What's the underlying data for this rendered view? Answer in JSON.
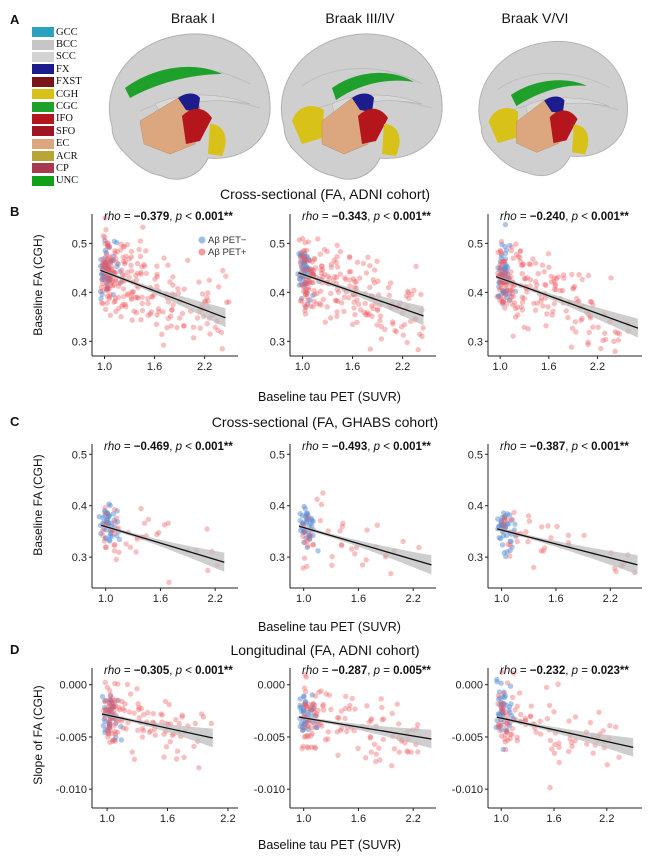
{
  "panel_letters": [
    "A",
    "B",
    "C",
    "D"
  ],
  "panel_a": {
    "titles": [
      "Braak I",
      "Braak III/IV",
      "Braak V/VI"
    ],
    "legend": [
      {
        "label": "GCC",
        "color": "#2ba3c0"
      },
      {
        "label": "BCC",
        "color": "#c6c6c6"
      },
      {
        "label": "SCC",
        "color": "#d3d3d3"
      },
      {
        "label": "FX",
        "color": "#1c1c8c"
      },
      {
        "label": "FXST",
        "color": "#7a1418"
      },
      {
        "label": "CGH",
        "color": "#d8c21a"
      },
      {
        "label": "CGC",
        "color": "#1fa02a"
      },
      {
        "label": "IFO",
        "color": "#b4161c"
      },
      {
        "label": "SFO",
        "color": "#a01424"
      },
      {
        "label": "EC",
        "color": "#dca77e"
      },
      {
        "label": "ACR",
        "color": "#b9a536"
      },
      {
        "label": "CP",
        "color": "#a73a50"
      },
      {
        "label": "UNC",
        "color": "#12a018"
      }
    ]
  },
  "sections": {
    "B": {
      "title": "Cross-sectional (FA, ADNI cohort)",
      "ylabel": "Baseline FA (CGH)",
      "xlabel": "Baseline tau PET (SUVR)"
    },
    "C": {
      "title": "Cross-sectional (FA, GHABS cohort)",
      "ylabel": "Baseline FA (CGH)",
      "xlabel": "Baseline tau PET (SUVR)"
    },
    "D": {
      "title": "Longitudinal (FA, ADNI cohort)",
      "ylabel": "Slope of FA (CGH)",
      "xlabel": "Baseline tau PET (SUVR)"
    }
  },
  "legend_b": [
    "Aβ PET−",
    "Aβ PET+"
  ],
  "colors": {
    "neg": "#5b8fd6",
    "pos": "#ef5a5f",
    "band": "#bdbdbd",
    "line": "#111111"
  },
  "chart_data": [
    {
      "type": "scatter",
      "row": "B",
      "column": 1,
      "annotation": {
        "rho": "−0.379",
        "p_op": "<",
        "p": "0.001**"
      },
      "xticks": [
        1.0,
        1.6,
        2.2
      ],
      "yticks": [
        0.3,
        0.4,
        0.5
      ],
      "xlim": [
        0.85,
        2.6
      ],
      "ylim": [
        0.27,
        0.56
      ],
      "trend": {
        "x": [
          0.95,
          2.45
        ],
        "y": [
          0.445,
          0.348
        ]
      },
      "n_neg": 60,
      "n_pos": 240,
      "x_max": 2.45
    },
    {
      "type": "scatter",
      "row": "B",
      "column": 2,
      "annotation": {
        "rho": "−0.343",
        "p_op": "<",
        "p": "0.001**"
      },
      "xticks": [
        1.0,
        1.6,
        2.2
      ],
      "yticks": [
        0.3,
        0.4,
        0.5
      ],
      "xlim": [
        0.85,
        2.6
      ],
      "ylim": [
        0.27,
        0.56
      ],
      "trend": {
        "x": [
          0.95,
          2.45
        ],
        "y": [
          0.44,
          0.352
        ]
      },
      "n_neg": 60,
      "n_pos": 220,
      "x_max": 2.45
    },
    {
      "type": "scatter",
      "row": "B",
      "column": 3,
      "annotation": {
        "rho": "−0.240",
        "p_op": "<",
        "p": "0.001**"
      },
      "xticks": [
        1.0,
        1.6,
        2.2
      ],
      "yticks": [
        0.3,
        0.4,
        0.5
      ],
      "xlim": [
        0.85,
        2.75
      ],
      "ylim": [
        0.27,
        0.56
      ],
      "trend": {
        "x": [
          0.95,
          2.7
        ],
        "y": [
          0.432,
          0.327
        ]
      },
      "n_neg": 60,
      "n_pos": 200,
      "x_max": 2.6
    },
    {
      "type": "scatter",
      "row": "C",
      "column": 1,
      "annotation": {
        "rho": "−0.469",
        "p_op": "<",
        "p": "0.001**"
      },
      "xticks": [
        1.0,
        1.6,
        2.2
      ],
      "yticks": [
        0.3,
        0.4,
        0.5
      ],
      "xlim": [
        0.85,
        2.45
      ],
      "ylim": [
        0.24,
        0.52
      ],
      "trend": {
        "x": [
          0.95,
          2.3
        ],
        "y": [
          0.362,
          0.29
        ]
      },
      "n_neg": 45,
      "n_pos": 45,
      "x_max": 2.3
    },
    {
      "type": "scatter",
      "row": "C",
      "column": 2,
      "annotation": {
        "rho": "−0.493",
        "p_op": "<",
        "p": "0.001**"
      },
      "xticks": [
        1.0,
        1.6,
        2.2
      ],
      "yticks": [
        0.3,
        0.4,
        0.5
      ],
      "xlim": [
        0.85,
        2.45
      ],
      "ylim": [
        0.24,
        0.52
      ],
      "trend": {
        "x": [
          0.95,
          2.4
        ],
        "y": [
          0.36,
          0.285
        ]
      },
      "n_neg": 45,
      "n_pos": 40,
      "x_max": 2.4
    },
    {
      "type": "scatter",
      "row": "C",
      "column": 3,
      "annotation": {
        "rho": "−0.387",
        "p_op": "<",
        "p": "0.001**"
      },
      "xticks": [
        1.0,
        1.6,
        2.2
      ],
      "yticks": [
        0.3,
        0.4,
        0.5
      ],
      "xlim": [
        0.85,
        2.55
      ],
      "ylim": [
        0.24,
        0.52
      ],
      "trend": {
        "x": [
          0.95,
          2.5
        ],
        "y": [
          0.355,
          0.285
        ]
      },
      "n_neg": 45,
      "n_pos": 40,
      "x_max": 2.5
    },
    {
      "type": "scatter",
      "row": "D",
      "column": 1,
      "annotation": {
        "rho": "−0.305",
        "p_op": "<",
        "p": "0.001**"
      },
      "xticks": [
        1.0,
        1.6,
        2.2
      ],
      "yticks": [
        0.0,
        -0.005,
        -0.01
      ],
      "ytick_labels": [
        "0.000",
        "-0.005",
        "-0.010"
      ],
      "xlim": [
        0.85,
        2.3
      ],
      "ylim": [
        -0.0118,
        0.0016
      ],
      "trend": {
        "x": [
          0.95,
          2.05
        ],
        "y": [
          -0.0028,
          -0.0051
        ]
      },
      "n_neg": 45,
      "n_pos": 130,
      "x_max": 2.05
    },
    {
      "type": "scatter",
      "row": "D",
      "column": 2,
      "annotation": {
        "rho": "−0.287",
        "p_op": "=",
        "p": "0.005**"
      },
      "xticks": [
        1.0,
        1.6,
        2.2
      ],
      "yticks": [
        0.0,
        -0.005,
        -0.01
      ],
      "ytick_labels": [
        "0.000",
        "-0.005",
        "-0.010"
      ],
      "xlim": [
        0.85,
        2.45
      ],
      "ylim": [
        -0.0118,
        0.0016
      ],
      "trend": {
        "x": [
          0.95,
          2.4
        ],
        "y": [
          -0.0031,
          -0.0052
        ]
      },
      "n_neg": 45,
      "n_pos": 120,
      "x_max": 2.3
    },
    {
      "type": "scatter",
      "row": "D",
      "column": 3,
      "annotation": {
        "rho": "−0.232",
        "p_op": "=",
        "p": "0.023**"
      },
      "xticks": [
        1.0,
        1.6,
        2.2
      ],
      "yticks": [
        0.0,
        -0.005,
        -0.01
      ],
      "ytick_labels": [
        "0.000",
        "-0.005",
        "-0.010"
      ],
      "xlim": [
        0.85,
        2.6
      ],
      "ylim": [
        -0.0118,
        0.0016
      ],
      "trend": {
        "x": [
          0.95,
          2.5
        ],
        "y": [
          -0.0031,
          -0.006
        ]
      },
      "n_neg": 45,
      "n_pos": 100,
      "x_max": 2.4
    }
  ]
}
